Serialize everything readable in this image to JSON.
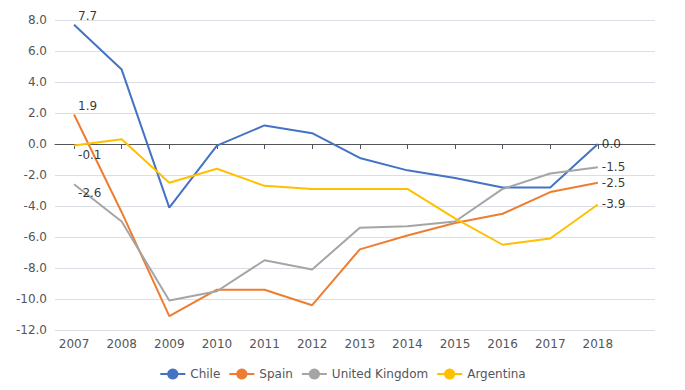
{
  "chart_data": {
    "type": "line",
    "x": [
      2007,
      2008,
      2009,
      2010,
      2011,
      2012,
      2013,
      2014,
      2015,
      2016,
      2017,
      2018
    ],
    "xlim": [
      2006.6,
      2019.2
    ],
    "xticks": [
      2007,
      2008,
      2009,
      2010,
      2011,
      2012,
      2013,
      2014,
      2015,
      2016,
      2017,
      2018
    ],
    "ylim": [
      -12.0,
      8.0
    ],
    "yticks": [
      {
        "value": -12,
        "label": "-12.0"
      },
      {
        "value": -10,
        "label": "-10.0"
      },
      {
        "value": -8,
        "label": "-8.0"
      },
      {
        "value": -6,
        "label": "-6.0"
      },
      {
        "value": -4,
        "label": "-4.0"
      },
      {
        "value": -2,
        "label": "-2.0"
      },
      {
        "value": 0,
        "label": "0.0"
      },
      {
        "value": 2,
        "label": "2.0"
      },
      {
        "value": 4,
        "label": "4.0"
      },
      {
        "value": 6,
        "label": "6.0"
      },
      {
        "value": 8,
        "label": "8.0"
      }
    ],
    "grid": "y",
    "legend": "bottom",
    "series": [
      {
        "name": "Chile",
        "color": "#4472C4",
        "values": [
          7.7,
          4.8,
          -4.1,
          -0.1,
          1.2,
          0.7,
          -0.9,
          -1.7,
          -2.2,
          -2.8,
          -2.8,
          0.0
        ]
      },
      {
        "name": "Spain",
        "color": "#ED7D31",
        "values": [
          1.9,
          -4.4,
          -11.1,
          -9.4,
          -9.4,
          -10.4,
          -6.8,
          -5.9,
          -5.1,
          -4.5,
          -3.1,
          -2.5
        ]
      },
      {
        "name": "United Kingdom",
        "color": "#A5A5A5",
        "values": [
          -2.6,
          -5.0,
          -10.1,
          -9.5,
          -7.5,
          -8.1,
          -5.4,
          -5.3,
          -5.0,
          -2.9,
          -1.9,
          -1.5
        ]
      },
      {
        "name": "Argentina",
        "color": "#FFC000",
        "values": [
          -0.1,
          0.3,
          -2.5,
          -1.6,
          -2.7,
          -2.9,
          -2.9,
          -2.9,
          -4.8,
          -6.5,
          -6.1,
          -3.9
        ]
      }
    ],
    "annotations": [
      {
        "text": "7.7",
        "x": 2007,
        "y": 7.7
      },
      {
        "text": "1.9",
        "x": 2007,
        "y": 1.9
      },
      {
        "text": "-2.6",
        "x": 2007,
        "y": -2.6
      },
      {
        "text": "-0.1",
        "x": 2007,
        "y": -0.1
      },
      {
        "text": "0.0",
        "x": 2018,
        "y": 0.0
      },
      {
        "text": "-1.5",
        "x": 2018,
        "y": -1.5
      },
      {
        "text": "-2.5",
        "x": 2018,
        "y": -2.5
      },
      {
        "text": "-3.9",
        "x": 2018,
        "y": -3.9
      }
    ]
  }
}
